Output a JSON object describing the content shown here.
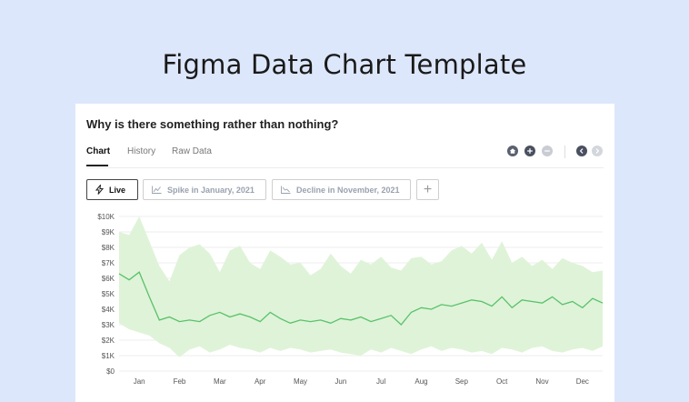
{
  "page": {
    "title": "Figma Data Chart Template"
  },
  "card": {
    "question": "Why is there something rather than nothing?"
  },
  "tabs": [
    {
      "label": "Chart",
      "active": true
    },
    {
      "label": "History",
      "active": false
    },
    {
      "label": "Raw Data",
      "active": false
    }
  ],
  "toolbar_icons": [
    "home-icon",
    "plus-icon",
    "minus-icon",
    "chevron-left-icon",
    "chevron-right-icon"
  ],
  "filters": {
    "live_label": "Live",
    "spike_label": "Spike in January, 2021",
    "decline_label": "Decline in November, 2021",
    "add_label": "+"
  },
  "colors": {
    "line": "#58c26b",
    "band": "#dff3d8",
    "background": "#dde7fb"
  },
  "chart_data": {
    "type": "area",
    "y_tick_labels": [
      "$10K",
      "$9K",
      "$8K",
      "$7K",
      "$6K",
      "$5K",
      "$4K",
      "$3K",
      "$2K",
      "$1K",
      "$0"
    ],
    "x_tick_labels": [
      "Jan",
      "Feb",
      "Mar",
      "Apr",
      "May",
      "Jun",
      "Jul",
      "Aug",
      "Sep",
      "Oct",
      "Nov",
      "Dec"
    ],
    "ylim": [
      0,
      10000
    ],
    "xlim": [
      0,
      12
    ],
    "grid": true,
    "x": [
      0,
      0.25,
      0.5,
      0.75,
      1,
      1.25,
      1.5,
      1.75,
      2,
      2.25,
      2.5,
      2.75,
      3,
      3.25,
      3.5,
      3.75,
      4,
      4.25,
      4.5,
      4.75,
      5,
      5.25,
      5.5,
      5.75,
      6,
      6.25,
      6.5,
      6.75,
      7,
      7.25,
      7.5,
      7.75,
      8,
      8.25,
      8.5,
      8.75,
      9,
      9.25,
      9.5,
      9.75,
      10,
      10.25,
      10.5,
      10.75,
      11,
      11.25,
      11.5,
      11.75,
      12
    ],
    "series": [
      {
        "values": [
          6300,
          5900,
          6400,
          4800,
          3300,
          3500,
          3200,
          3300,
          3200,
          3600,
          3800,
          3500,
          3700,
          3500,
          3200,
          3800,
          3400,
          3100,
          3300,
          3200,
          3300,
          3100,
          3400,
          3300,
          3500,
          3200,
          3400,
          3600,
          3000,
          3800,
          4100,
          4000,
          4300,
          4200,
          4400,
          4600,
          4500,
          4200,
          4800,
          4100,
          4600,
          4500,
          4400,
          4800,
          4300,
          4500,
          4100,
          4700,
          4400
        ]
      },
      {
        "name": "upper",
        "values": [
          9000,
          8800,
          10000,
          8400,
          6800,
          5800,
          7500,
          8000,
          8200,
          7600,
          6400,
          7800,
          8100,
          7000,
          6600,
          7800,
          7400,
          6900,
          7000,
          6200,
          6600,
          7600,
          6800,
          6300,
          7200,
          6900,
          7400,
          6700,
          6500,
          7300,
          7400,
          6900,
          7100,
          7800,
          8100,
          7600,
          8300,
          7200,
          8400,
          7000,
          7400,
          6800,
          7200,
          6600,
          7300,
          7000,
          6800,
          6400,
          6500
        ]
      },
      {
        "name": "lower",
        "values": [
          3100,
          2700,
          2500,
          2300,
          1800,
          1500,
          900,
          1400,
          1600,
          1200,
          1400,
          1700,
          1500,
          1400,
          1200,
          1500,
          1300,
          1500,
          1400,
          1200,
          1300,
          1400,
          1200,
          1100,
          1000,
          1400,
          1200,
          1500,
          1300,
          1100,
          1400,
          1600,
          1300,
          1500,
          1400,
          1200,
          1300,
          1100,
          1500,
          1400,
          1200,
          1500,
          1600,
          1300,
          1200,
          1400,
          1500,
          1300,
          1600
        ]
      }
    ]
  }
}
